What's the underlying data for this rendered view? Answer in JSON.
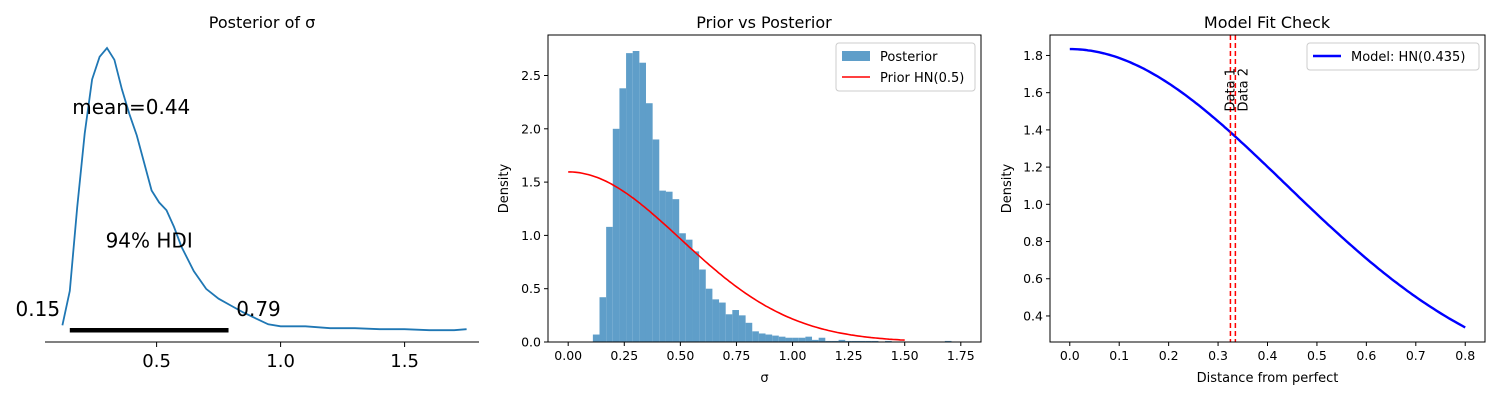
{
  "chart_data": [
    {
      "type": "line",
      "title": "Posterior of σ",
      "xlim": [
        0.05,
        1.8
      ],
      "ylim": [
        -0.12,
        2.9
      ],
      "xticks": [
        "0.5",
        "1.0",
        "1.5"
      ],
      "x": [
        0.12,
        0.15,
        0.18,
        0.21,
        0.24,
        0.27,
        0.3,
        0.33,
        0.36,
        0.39,
        0.42,
        0.45,
        0.48,
        0.51,
        0.54,
        0.57,
        0.6,
        0.65,
        0.7,
        0.75,
        0.8,
        0.85,
        0.9,
        0.95,
        1.0,
        1.1,
        1.2,
        1.3,
        1.4,
        1.5,
        1.6,
        1.7,
        1.75
      ],
      "y": [
        0.05,
        0.4,
        1.25,
        2.0,
        2.55,
        2.78,
        2.87,
        2.75,
        2.45,
        2.2,
        1.98,
        1.7,
        1.42,
        1.3,
        1.22,
        1.05,
        0.85,
        0.6,
        0.42,
        0.32,
        0.25,
        0.18,
        0.12,
        0.06,
        0.04,
        0.04,
        0.02,
        0.02,
        0.01,
        0.01,
        0.0,
        0.0,
        0.01
      ],
      "mean_label": "mean=0.44",
      "hdi_label": "94% HDI",
      "hdi": [
        0.15,
        0.79
      ],
      "hdi_low_label": "0.15",
      "hdi_high_label": "0.79",
      "line_color": "#1f77b4"
    },
    {
      "type": "bar",
      "title": "Prior vs Posterior",
      "xlabel": "σ",
      "ylabel": "Density",
      "xlim": [
        -0.09,
        1.84
      ],
      "ylim": [
        0,
        2.88
      ],
      "xticks": [
        "0.00",
        "0.25",
        "0.50",
        "0.75",
        "1.00",
        "1.25",
        "1.50",
        "1.75"
      ],
      "yticks": [
        "0.0",
        "0.5",
        "1.0",
        "1.5",
        "2.0",
        "2.5"
      ],
      "bin_start": 0.11,
      "bin_width": 0.0296,
      "values": [
        0.07,
        0.42,
        1.08,
        2.0,
        2.38,
        2.71,
        2.73,
        2.62,
        2.24,
        1.9,
        1.42,
        1.41,
        1.34,
        1.02,
        0.96,
        0.85,
        0.68,
        0.5,
        0.4,
        0.37,
        0.26,
        0.3,
        0.25,
        0.18,
        0.1,
        0.08,
        0.07,
        0.06,
        0.05,
        0.04,
        0.04,
        0.04,
        0.05,
        0.02,
        0.04,
        0.01,
        0.01,
        0.02,
        0.01,
        0.01,
        0.01,
        0.01,
        0.01,
        0.0,
        0.01,
        0.0,
        0.0,
        0.0,
        0.0,
        0.0,
        0.0,
        0.0,
        0.0,
        0.01
      ],
      "prior_sigma": 0.5,
      "prior_range": [
        0.0,
        1.5
      ],
      "series": [
        {
          "name": "Posterior",
          "color": "#5f9ec9"
        },
        {
          "name": "Prior HN(0.5)",
          "color": "#ff0000"
        }
      ],
      "legend": "top-right"
    },
    {
      "type": "line",
      "title": "Model Fit Check",
      "xlabel": "Distance from perfect",
      "ylabel": "Density",
      "xlim": [
        -0.04,
        0.84
      ],
      "ylim": [
        0.26,
        1.91
      ],
      "xticks": [
        "0.0",
        "0.1",
        "0.2",
        "0.3",
        "0.4",
        "0.5",
        "0.6",
        "0.7",
        "0.8"
      ],
      "yticks": [
        "0.4",
        "0.6",
        "0.8",
        "1.0",
        "1.2",
        "1.4",
        "1.6",
        "1.8"
      ],
      "model_sigma": 0.435,
      "x_range": [
        0.0,
        0.8
      ],
      "series": [
        {
          "name": "Model: HN(0.435)",
          "color": "#0000ff"
        }
      ],
      "data_lines": [
        0.325,
        0.335
      ],
      "data_labels": [
        "Data 1",
        "Data 2"
      ],
      "data_color": "#ff0000",
      "legend": "top-right"
    }
  ]
}
